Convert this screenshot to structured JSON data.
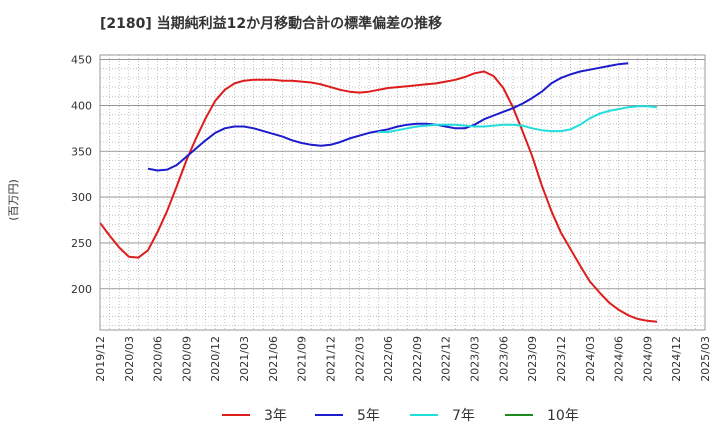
{
  "chart_data": {
    "type": "line",
    "title": "[2180]  当期純利益12か月移動合計の標準偏差の推移",
    "ylabel": "(百万円)",
    "xlabel": "",
    "ylim": [
      155,
      455
    ],
    "yticks": [
      200,
      250,
      300,
      350,
      400,
      450
    ],
    "start_month": "2019-12",
    "month_count": 64,
    "xtick_labels": [
      "2019/12",
      "2020/03",
      "2020/06",
      "2020/09",
      "2020/12",
      "2021/03",
      "2021/06",
      "2021/09",
      "2021/12",
      "2022/03",
      "2022/06",
      "2022/09",
      "2022/12",
      "2023/03",
      "2023/06",
      "2023/09",
      "2023/12",
      "2024/03",
      "2024/06",
      "2024/09",
      "2024/12",
      "2025/03"
    ],
    "grid": true,
    "legend_position": "bottom",
    "series": [
      {
        "name": "3年",
        "color": "#dd1c1c",
        "start_index": 0,
        "values": [
          272,
          258,
          245,
          235,
          234,
          242,
          262,
          285,
          312,
          340,
          364,
          386,
          405,
          417,
          424,
          427,
          428,
          428,
          428,
          427,
          427,
          426,
          425,
          423,
          420,
          417,
          415,
          414,
          415,
          417,
          419,
          420,
          421,
          422,
          423,
          424,
          426,
          428,
          431,
          435,
          437,
          432,
          419,
          398,
          372,
          345,
          313,
          285,
          261,
          243,
          225,
          208,
          196,
          185,
          177,
          171,
          167,
          165,
          164
        ]
      },
      {
        "name": "5年",
        "color": "#1c1ccc",
        "start_index": 5,
        "values": [
          331,
          329,
          330,
          335,
          344,
          353,
          362,
          370,
          375,
          377,
          377,
          375,
          372,
          369,
          366,
          362,
          359,
          357,
          356,
          357,
          360,
          364,
          367,
          370,
          372,
          374,
          377,
          379,
          380,
          380,
          379,
          377,
          375,
          375,
          379,
          385,
          389,
          393,
          397,
          402,
          408,
          415,
          424,
          430,
          434,
          437,
          439,
          441,
          443,
          445,
          446
        ]
      },
      {
        "name": "7年",
        "color": "#22dddd",
        "start_index": 29,
        "values": [
          371,
          371,
          373,
          375,
          377,
          378,
          379,
          379,
          379,
          378,
          377,
          377,
          378,
          379,
          379,
          378,
          375,
          373,
          372,
          372,
          374,
          379,
          386,
          391,
          394,
          396,
          398,
          399,
          399,
          398
        ]
      },
      {
        "name": "10年",
        "color": "#1e8a1e",
        "start_index": 0,
        "values": []
      }
    ]
  }
}
